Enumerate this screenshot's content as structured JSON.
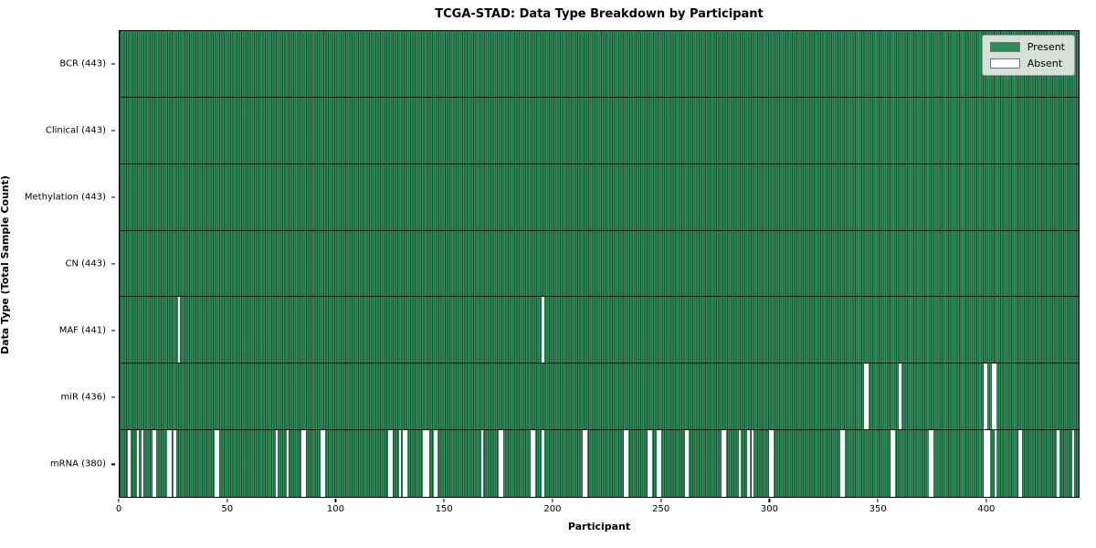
{
  "title": "TCGA-STAD: Data Type Breakdown by Participant",
  "colors": {
    "present": "#2e8b57",
    "present_stripe_dark": "#1b4e33",
    "absent": "#ffffff",
    "legend_background": "#e9ece9",
    "plot_border": "#000000"
  },
  "chart_data": {
    "type": "heatmap",
    "title": "TCGA-STAD: Data Type Breakdown by Participant",
    "xlabel": "Participant",
    "ylabel": "Data Type (Total Sample Count)",
    "x_ticks": [
      0,
      50,
      100,
      150,
      200,
      250,
      300,
      350,
      400
    ],
    "xlim": [
      0,
      443
    ],
    "n_participants": 443,
    "grid": false,
    "legend_position": "upper right",
    "legend_entries": [
      {
        "label": "Present",
        "color": "#2e8b57"
      },
      {
        "label": "Absent",
        "color": "#ffffff"
      }
    ],
    "rows": [
      {
        "name": "BCR",
        "label": "BCR (443)",
        "present_count": 443,
        "absent_participants": []
      },
      {
        "name": "Clinical",
        "label": "Clinical (443)",
        "present_count": 443,
        "absent_participants": []
      },
      {
        "name": "Methylation",
        "label": "Methylation (443)",
        "present_count": 443,
        "absent_participants": []
      },
      {
        "name": "CN",
        "label": "CN (443)",
        "present_count": 443,
        "absent_participants": []
      },
      {
        "name": "MAF",
        "label": "MAF (441)",
        "present_count": 441,
        "absent_participants": [
          27,
          195
        ]
      },
      {
        "name": "miR",
        "label": "miR (436)",
        "present_count": 436,
        "absent_participants": [
          344,
          345,
          360,
          399,
          400,
          403,
          404
        ]
      },
      {
        "name": "mRNA",
        "label": "mRNA (380)",
        "present_count": 380,
        "absent_participants": [
          4,
          8,
          10,
          15,
          16,
          22,
          23,
          25,
          44,
          45,
          72,
          77,
          84,
          85,
          93,
          94,
          124,
          125,
          129,
          131,
          132,
          140,
          141,
          142,
          145,
          146,
          167,
          175,
          176,
          190,
          191,
          195,
          214,
          215,
          233,
          234,
          244,
          245,
          248,
          249,
          261,
          262,
          278,
          279,
          286,
          290,
          292,
          300,
          301,
          333,
          334,
          356,
          357,
          374,
          375,
          399,
          400,
          401,
          404,
          415,
          416,
          433,
          440
        ]
      }
    ]
  }
}
